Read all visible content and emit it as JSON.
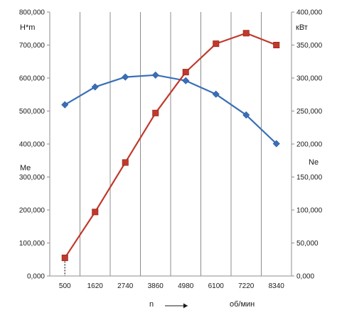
{
  "chart_data": {
    "type": "line",
    "categories": [
      "500",
      "1620",
      "2740",
      "3860",
      "4980",
      "6100",
      "7220",
      "8340"
    ],
    "x": [
      500,
      1620,
      2740,
      3860,
      4980,
      6100,
      7220,
      8340
    ],
    "series": [
      {
        "axis": "left",
        "color": "#3a6fb7",
        "marker": "diamond",
        "values": [
          519000,
          573000,
          603000,
          609000,
          592000,
          551000,
          488000,
          401000
        ]
      },
      {
        "axis": "right",
        "color": "#c0392b",
        "marker": "square",
        "values": [
          27500,
          97000,
          172000,
          247000,
          309000,
          352000,
          368000,
          350000
        ]
      }
    ],
    "left_axis": {
      "unit_label": "Н*m",
      "name_label": "Me",
      "ylim": [
        0,
        800000
      ],
      "ticks": [
        "0,000",
        "100,000",
        "200,000",
        "300,000",
        "400,000",
        "500,000",
        "600,000",
        "700,000",
        "800,000"
      ]
    },
    "right_axis": {
      "unit_label": "кВт",
      "name_label": "Ne",
      "ylim": [
        0,
        400000
      ],
      "ticks": [
        "0,000",
        "50,000",
        "100,000",
        "150,000",
        "200,000",
        "250,000",
        "300,000",
        "350,000",
        "400,000"
      ]
    },
    "x_axis": {
      "name_label": "n",
      "unit_label": "об/мин"
    },
    "grid": {
      "vertical": true,
      "horizontal": false
    }
  }
}
